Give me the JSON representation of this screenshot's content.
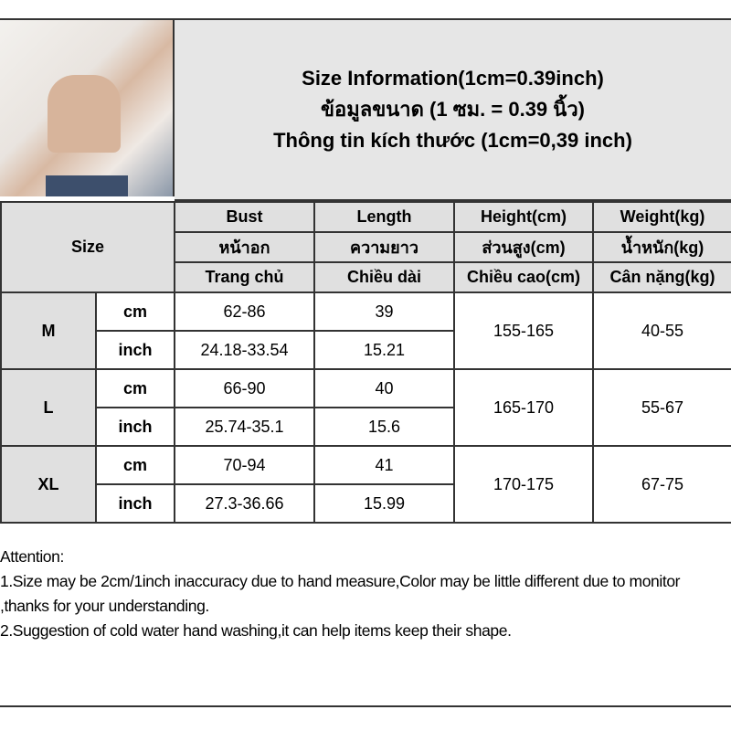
{
  "title_lines": [
    "Size Information(1cm=0.39inch)",
    "ข้อมูลขนาด (1 ซม. = 0.39 นิ้ว)",
    "Thông tin kích thước (1cm=0,39 inch)"
  ],
  "size_label": "Size",
  "headers": [
    [
      "Bust",
      "Length",
      "Height(cm)",
      "Weight(kg)"
    ],
    [
      "หน้าอก",
      "ความยาว",
      "ส่วนสูง(cm)",
      "น้ำหนัก(kg)"
    ],
    [
      "Trang chủ",
      "Chiều dài",
      "Chiều cao(cm)",
      "Cân nặng(kg)"
    ]
  ],
  "rows": [
    {
      "size": "M",
      "cm_label": "cm",
      "inch_label": "inch",
      "bust_cm": "62-86",
      "length_cm": "39",
      "bust_inch": "24.18-33.54",
      "length_inch": "15.21",
      "height": "155-165",
      "weight": "40-55"
    },
    {
      "size": "L",
      "cm_label": "cm",
      "inch_label": "inch",
      "bust_cm": "66-90",
      "length_cm": "40",
      "bust_inch": "25.74-35.1",
      "length_inch": "15.6",
      "height": "165-170",
      "weight": "55-67"
    },
    {
      "size": "XL",
      "cm_label": "cm",
      "inch_label": "inch",
      "bust_cm": "70-94",
      "length_cm": "41",
      "bust_inch": "27.3-36.66",
      "length_inch": "15.99",
      "height": "170-175",
      "weight": "67-75"
    }
  ],
  "notes": [
    "Attention:",
    "1.Size may be 2cm/1inch inaccuracy due to hand measure,Color may be little different due to monitor ,thanks for your understanding.",
    "2.Suggestion of cold water hand washing,it can help items keep their shape."
  ]
}
